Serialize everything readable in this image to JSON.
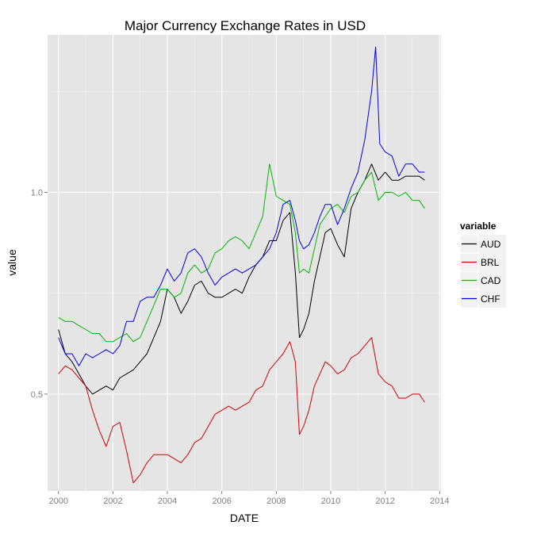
{
  "chart_data": {
    "type": "line",
    "title": "Major Currency Exchange Rates in USD",
    "xlabel": "DATE",
    "ylabel": "value",
    "xlim": [
      1999.6,
      2014.05
    ],
    "ylim": [
      0.26,
      1.39
    ],
    "x_ticks": [
      {
        "value": 2000,
        "label": "2000"
      },
      {
        "value": 2002,
        "label": "2002"
      },
      {
        "value": 2004,
        "label": "2004"
      },
      {
        "value": 2006,
        "label": "2006"
      },
      {
        "value": 2008,
        "label": "2008"
      },
      {
        "value": 2010,
        "label": "2010"
      },
      {
        "value": 2012,
        "label": "2012"
      },
      {
        "value": 2014,
        "label": "2014"
      }
    ],
    "y_ticks": [
      {
        "value": 0.5,
        "label": "0.5"
      },
      {
        "value": 1.0,
        "label": "1.0"
      }
    ],
    "grid": true,
    "legend": {
      "title": "variable",
      "position": "right"
    },
    "series": [
      {
        "name": "AUD",
        "color": "#000000",
        "x": [
          2000.0,
          2000.25,
          2000.5,
          2000.75,
          2001.0,
          2001.25,
          2001.5,
          2001.75,
          2002.0,
          2002.25,
          2002.5,
          2002.75,
          2003.0,
          2003.25,
          2003.5,
          2003.75,
          2004.0,
          2004.25,
          2004.5,
          2004.75,
          2005.0,
          2005.25,
          2005.5,
          2005.75,
          2006.0,
          2006.25,
          2006.5,
          2006.75,
          2007.0,
          2007.25,
          2007.5,
          2007.75,
          2008.0,
          2008.25,
          2008.5,
          2008.7,
          2008.85,
          2009.0,
          2009.2,
          2009.4,
          2009.6,
          2009.8,
          2010.0,
          2010.25,
          2010.5,
          2010.75,
          2011.0,
          2011.25,
          2011.5,
          2011.75,
          2012.0,
          2012.25,
          2012.5,
          2012.75,
          2013.0,
          2013.25,
          2013.45
        ],
        "values": [
          0.66,
          0.6,
          0.58,
          0.55,
          0.52,
          0.5,
          0.51,
          0.52,
          0.51,
          0.54,
          0.55,
          0.56,
          0.58,
          0.6,
          0.64,
          0.68,
          0.76,
          0.74,
          0.7,
          0.73,
          0.77,
          0.78,
          0.75,
          0.74,
          0.74,
          0.75,
          0.76,
          0.75,
          0.79,
          0.82,
          0.84,
          0.88,
          0.88,
          0.93,
          0.95,
          0.8,
          0.64,
          0.66,
          0.7,
          0.78,
          0.84,
          0.9,
          0.91,
          0.87,
          0.84,
          0.96,
          1.0,
          1.03,
          1.07,
          1.03,
          1.05,
          1.03,
          1.03,
          1.04,
          1.04,
          1.04,
          1.03
        ]
      },
      {
        "name": "BRL",
        "color": "#d40000",
        "x": [
          2000.0,
          2000.25,
          2000.5,
          2000.75,
          2001.0,
          2001.25,
          2001.5,
          2001.75,
          2002.0,
          2002.25,
          2002.5,
          2002.75,
          2003.0,
          2003.25,
          2003.5,
          2003.75,
          2004.0,
          2004.25,
          2004.5,
          2004.75,
          2005.0,
          2005.25,
          2005.5,
          2005.75,
          2006.0,
          2006.25,
          2006.5,
          2006.75,
          2007.0,
          2007.25,
          2007.5,
          2007.75,
          2008.0,
          2008.25,
          2008.5,
          2008.7,
          2008.85,
          2009.0,
          2009.2,
          2009.4,
          2009.6,
          2009.8,
          2010.0,
          2010.25,
          2010.5,
          2010.75,
          2011.0,
          2011.25,
          2011.5,
          2011.75,
          2012.0,
          2012.25,
          2012.5,
          2012.75,
          2013.0,
          2013.25,
          2013.45
        ],
        "values": [
          0.55,
          0.57,
          0.56,
          0.54,
          0.52,
          0.46,
          0.41,
          0.37,
          0.42,
          0.43,
          0.36,
          0.28,
          0.3,
          0.33,
          0.35,
          0.35,
          0.35,
          0.34,
          0.33,
          0.35,
          0.38,
          0.39,
          0.42,
          0.45,
          0.46,
          0.47,
          0.46,
          0.47,
          0.48,
          0.51,
          0.52,
          0.56,
          0.58,
          0.6,
          0.63,
          0.58,
          0.4,
          0.42,
          0.46,
          0.52,
          0.55,
          0.58,
          0.57,
          0.55,
          0.56,
          0.59,
          0.6,
          0.62,
          0.64,
          0.55,
          0.53,
          0.52,
          0.49,
          0.49,
          0.5,
          0.5,
          0.48
        ]
      },
      {
        "name": "CAD",
        "color": "#00b800",
        "x": [
          2000.0,
          2000.25,
          2000.5,
          2000.75,
          2001.0,
          2001.25,
          2001.5,
          2001.75,
          2002.0,
          2002.25,
          2002.5,
          2002.75,
          2003.0,
          2003.25,
          2003.5,
          2003.75,
          2004.0,
          2004.25,
          2004.5,
          2004.75,
          2005.0,
          2005.25,
          2005.5,
          2005.75,
          2006.0,
          2006.25,
          2006.5,
          2006.75,
          2007.0,
          2007.25,
          2007.5,
          2007.75,
          2008.0,
          2008.25,
          2008.5,
          2008.7,
          2008.85,
          2009.0,
          2009.2,
          2009.4,
          2009.6,
          2009.8,
          2010.0,
          2010.25,
          2010.5,
          2010.75,
          2011.0,
          2011.25,
          2011.5,
          2011.75,
          2012.0,
          2012.25,
          2012.5,
          2012.75,
          2013.0,
          2013.25,
          2013.45
        ],
        "values": [
          0.69,
          0.68,
          0.68,
          0.67,
          0.66,
          0.65,
          0.65,
          0.63,
          0.63,
          0.64,
          0.65,
          0.63,
          0.64,
          0.68,
          0.72,
          0.76,
          0.76,
          0.74,
          0.75,
          0.8,
          0.82,
          0.8,
          0.81,
          0.85,
          0.86,
          0.88,
          0.89,
          0.88,
          0.86,
          0.9,
          0.94,
          1.07,
          0.99,
          0.98,
          0.97,
          0.9,
          0.8,
          0.81,
          0.8,
          0.86,
          0.92,
          0.94,
          0.96,
          0.97,
          0.95,
          0.99,
          1.0,
          1.03,
          1.05,
          0.98,
          1.0,
          1.0,
          0.99,
          1.0,
          0.98,
          0.98,
          0.96
        ]
      },
      {
        "name": "CHF",
        "color": "#0000e6",
        "x": [
          2000.0,
          2000.25,
          2000.5,
          2000.75,
          2001.0,
          2001.25,
          2001.5,
          2001.75,
          2002.0,
          2002.25,
          2002.5,
          2002.75,
          2003.0,
          2003.25,
          2003.5,
          2003.75,
          2004.0,
          2004.25,
          2004.5,
          2004.75,
          2005.0,
          2005.25,
          2005.5,
          2005.75,
          2006.0,
          2006.25,
          2006.5,
          2006.75,
          2007.0,
          2007.25,
          2007.5,
          2007.75,
          2008.0,
          2008.25,
          2008.5,
          2008.7,
          2008.85,
          2009.0,
          2009.2,
          2009.4,
          2009.6,
          2009.8,
          2010.0,
          2010.25,
          2010.5,
          2010.75,
          2011.0,
          2011.25,
          2011.5,
          2011.65,
          2011.8,
          2012.0,
          2012.25,
          2012.5,
          2012.75,
          2013.0,
          2013.25,
          2013.45
        ],
        "values": [
          0.64,
          0.6,
          0.6,
          0.57,
          0.6,
          0.59,
          0.6,
          0.61,
          0.6,
          0.62,
          0.68,
          0.68,
          0.73,
          0.74,
          0.74,
          0.77,
          0.81,
          0.78,
          0.8,
          0.85,
          0.86,
          0.84,
          0.8,
          0.77,
          0.79,
          0.8,
          0.81,
          0.8,
          0.81,
          0.82,
          0.84,
          0.86,
          0.9,
          0.97,
          0.98,
          0.93,
          0.88,
          0.86,
          0.87,
          0.9,
          0.94,
          0.97,
          0.97,
          0.92,
          0.96,
          1.01,
          1.05,
          1.13,
          1.25,
          1.36,
          1.12,
          1.1,
          1.09,
          1.04,
          1.07,
          1.07,
          1.05,
          1.05
        ]
      }
    ]
  }
}
